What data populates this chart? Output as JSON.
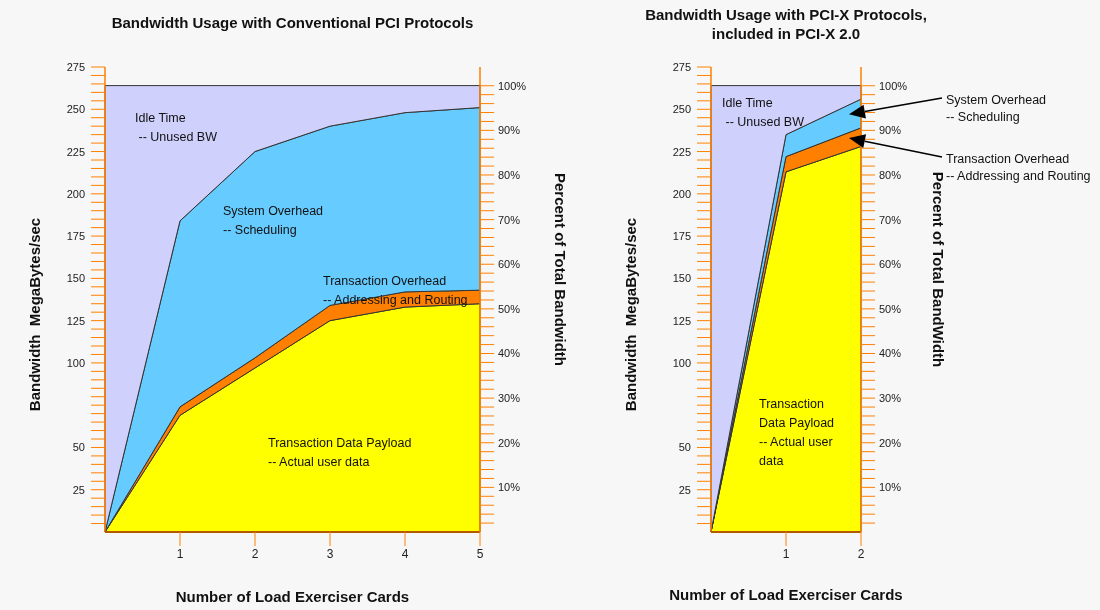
{
  "chart_data": [
    {
      "type": "area",
      "stacked": true,
      "title": "Bandwidth Usage with Conventional PCI Protocols",
      "xlabel": "Number of Load Exerciser Cards",
      "ylabel": "Bandwidth  MegaBytes/sec",
      "y2label": "Percent of Total Bandwidth",
      "x": [
        0,
        1,
        2,
        3,
        4,
        5
      ],
      "xlim": [
        0,
        5
      ],
      "xticks": [
        1,
        2,
        3,
        4,
        5
      ],
      "ylim": [
        0,
        275
      ],
      "yticks": [
        {
          "value": 5,
          "label": null
        },
        {
          "value": 10,
          "label": null
        },
        {
          "value": 15,
          "label": null
        },
        {
          "value": 20,
          "label": null
        },
        25,
        {
          "value": 30,
          "label": null
        },
        {
          "value": 35,
          "label": null
        },
        {
          "value": 40,
          "label": null
        },
        {
          "value": 45,
          "label": null
        },
        50,
        {
          "value": 55,
          "label": null
        },
        {
          "value": 60,
          "label": null
        },
        {
          "value": 65,
          "label": null
        },
        {
          "value": 70,
          "label": null
        },
        {
          "value": 75,
          "label": null
        },
        {
          "value": 80,
          "label": null
        },
        {
          "value": 85,
          "label": null
        },
        {
          "value": 90,
          "label": null
        },
        {
          "value": 95,
          "label": null
        },
        100,
        {
          "value": 105,
          "label": null
        },
        {
          "value": 110,
          "label": null
        },
        {
          "value": 115,
          "label": null
        },
        {
          "value": 120,
          "label": null
        },
        125,
        {
          "value": 130,
          "label": null
        },
        {
          "value": 135,
          "label": null
        },
        {
          "value": 140,
          "label": null
        },
        {
          "value": 145,
          "label": null
        },
        150,
        {
          "value": 155,
          "label": null
        },
        {
          "value": 160,
          "label": null
        },
        {
          "value": 165,
          "label": null
        },
        {
          "value": 170,
          "label": null
        },
        175,
        {
          "value": 180,
          "label": null
        },
        {
          "value": 185,
          "label": null
        },
        {
          "value": 190,
          "label": null
        },
        {
          "value": 195,
          "label": null
        },
        200,
        {
          "value": 205,
          "label": null
        },
        {
          "value": 210,
          "label": null
        },
        {
          "value": 215,
          "label": null
        },
        {
          "value": 220,
          "label": null
        },
        225,
        {
          "value": 230,
          "label": null
        },
        {
          "value": 235,
          "label": null
        },
        {
          "value": 240,
          "label": null
        },
        {
          "value": 245,
          "label": null
        },
        250,
        {
          "value": 255,
          "label": null
        },
        {
          "value": 260,
          "label": null
        },
        {
          "value": 265,
          "label": null
        },
        {
          "value": 270,
          "label": null
        },
        275
      ],
      "y2lim": [
        0,
        104.2
      ],
      "y2ticks": [
        {
          "value": 2,
          "label": null
        },
        {
          "value": 4,
          "label": null
        },
        {
          "value": 6,
          "label": null
        },
        {
          "value": 8,
          "label": null
        },
        {
          "value": 10,
          "label": "10%"
        },
        {
          "value": 12,
          "label": null
        },
        {
          "value": 14,
          "label": null
        },
        {
          "value": 16,
          "label": null
        },
        {
          "value": 18,
          "label": null
        },
        {
          "value": 20,
          "label": "20%"
        },
        {
          "value": 22,
          "label": null
        },
        {
          "value": 24,
          "label": null
        },
        {
          "value": 26,
          "label": null
        },
        {
          "value": 28,
          "label": null
        },
        {
          "value": 30,
          "label": "30%"
        },
        {
          "value": 32,
          "label": null
        },
        {
          "value": 34,
          "label": null
        },
        {
          "value": 36,
          "label": null
        },
        {
          "value": 38,
          "label": null
        },
        {
          "value": 40,
          "label": "40%"
        },
        {
          "value": 42,
          "label": null
        },
        {
          "value": 44,
          "label": null
        },
        {
          "value": 46,
          "label": null
        },
        {
          "value": 48,
          "label": null
        },
        {
          "value": 50,
          "label": "50%"
        },
        {
          "value": 52,
          "label": null
        },
        {
          "value": 54,
          "label": null
        },
        {
          "value": 56,
          "label": null
        },
        {
          "value": 58,
          "label": null
        },
        {
          "value": 60,
          "label": "60%"
        },
        {
          "value": 62,
          "label": null
        },
        {
          "value": 64,
          "label": null
        },
        {
          "value": 66,
          "label": null
        },
        {
          "value": 68,
          "label": null
        },
        {
          "value": 70,
          "label": "70%"
        },
        {
          "value": 72,
          "label": null
        },
        {
          "value": 74,
          "label": null
        },
        {
          "value": 76,
          "label": null
        },
        {
          "value": 78,
          "label": null
        },
        {
          "value": 80,
          "label": "80%"
        },
        {
          "value": 82,
          "label": null
        },
        {
          "value": 84,
          "label": null
        },
        {
          "value": 86,
          "label": null
        },
        {
          "value": 88,
          "label": null
        },
        {
          "value": 90,
          "label": "90%"
        },
        {
          "value": 92,
          "label": null
        },
        {
          "value": 94,
          "label": null
        },
        {
          "value": 96,
          "label": null
        },
        {
          "value": 98,
          "label": null
        },
        {
          "value": 100,
          "label": "100%"
        }
      ],
      "series": [
        {
          "name": "Transaction Data Payload\n-- Actual user data",
          "color": "#ffff00",
          "values": [
            0,
            69,
            97,
            125,
            133,
            135
          ]
        },
        {
          "name": "Transaction Overhead\n-- Addressing and Routing",
          "color": "#ff8000",
          "values": [
            0,
            5,
            6,
            9,
            9,
            8
          ]
        },
        {
          "name": "System Overhead\n-- Scheduling",
          "color": "#66ccff",
          "values": [
            0,
            110,
            122,
            106,
            106,
            108
          ]
        },
        {
          "name": "Idle Time\n -- Unused BW",
          "color": "#d0d0fc",
          "values": [
            264,
            80,
            39,
            24,
            16,
            13
          ]
        }
      ]
    },
    {
      "type": "area",
      "stacked": true,
      "title": "Bandwidth Usage with PCI-X Protocols,\nincluded in PCI-X 2.0",
      "xlabel": "Number of Load Exerciser Cards",
      "ylabel": "Bandwidth  MegaBytes/sec",
      "y2label": "Percent of Total BandWidth",
      "x": [
        0,
        1,
        2
      ],
      "xlim": [
        0,
        2
      ],
      "xticks": [
        1,
        2
      ],
      "ylim": [
        0,
        275
      ],
      "yticks": [
        {
          "value": 5,
          "label": null
        },
        {
          "value": 10,
          "label": null
        },
        {
          "value": 15,
          "label": null
        },
        {
          "value": 20,
          "label": null
        },
        25,
        {
          "value": 30,
          "label": null
        },
        {
          "value": 35,
          "label": null
        },
        {
          "value": 40,
          "label": null
        },
        {
          "value": 45,
          "label": null
        },
        50,
        {
          "value": 55,
          "label": null
        },
        {
          "value": 60,
          "label": null
        },
        {
          "value": 65,
          "label": null
        },
        {
          "value": 70,
          "label": null
        },
        {
          "value": 75,
          "label": null
        },
        {
          "value": 80,
          "label": null
        },
        {
          "value": 85,
          "label": null
        },
        {
          "value": 90,
          "label": null
        },
        {
          "value": 95,
          "label": null
        },
        100,
        {
          "value": 105,
          "label": null
        },
        {
          "value": 110,
          "label": null
        },
        {
          "value": 115,
          "label": null
        },
        {
          "value": 120,
          "label": null
        },
        125,
        {
          "value": 130,
          "label": null
        },
        {
          "value": 135,
          "label": null
        },
        {
          "value": 140,
          "label": null
        },
        {
          "value": 145,
          "label": null
        },
        150,
        {
          "value": 155,
          "label": null
        },
        {
          "value": 160,
          "label": null
        },
        {
          "value": 165,
          "label": null
        },
        {
          "value": 170,
          "label": null
        },
        175,
        {
          "value": 180,
          "label": null
        },
        {
          "value": 185,
          "label": null
        },
        {
          "value": 190,
          "label": null
        },
        {
          "value": 195,
          "label": null
        },
        200,
        {
          "value": 205,
          "label": null
        },
        {
          "value": 210,
          "label": null
        },
        {
          "value": 215,
          "label": null
        },
        {
          "value": 220,
          "label": null
        },
        225,
        {
          "value": 230,
          "label": null
        },
        {
          "value": 235,
          "label": null
        },
        {
          "value": 240,
          "label": null
        },
        {
          "value": 245,
          "label": null
        },
        250,
        {
          "value": 255,
          "label": null
        },
        {
          "value": 260,
          "label": null
        },
        {
          "value": 265,
          "label": null
        },
        {
          "value": 270,
          "label": null
        },
        275
      ],
      "y2lim": [
        0,
        104.2
      ],
      "y2ticks": [
        {
          "value": 2,
          "label": null
        },
        {
          "value": 4,
          "label": null
        },
        {
          "value": 6,
          "label": null
        },
        {
          "value": 8,
          "label": null
        },
        {
          "value": 10,
          "label": "10%"
        },
        {
          "value": 12,
          "label": null
        },
        {
          "value": 14,
          "label": null
        },
        {
          "value": 16,
          "label": null
        },
        {
          "value": 18,
          "label": null
        },
        {
          "value": 20,
          "label": "20%"
        },
        {
          "value": 22,
          "label": null
        },
        {
          "value": 24,
          "label": null
        },
        {
          "value": 26,
          "label": null
        },
        {
          "value": 28,
          "label": null
        },
        {
          "value": 30,
          "label": "30%"
        },
        {
          "value": 32,
          "label": null
        },
        {
          "value": 34,
          "label": null
        },
        {
          "value": 36,
          "label": null
        },
        {
          "value": 38,
          "label": null
        },
        {
          "value": 40,
          "label": "40%"
        },
        {
          "value": 42,
          "label": null
        },
        {
          "value": 44,
          "label": null
        },
        {
          "value": 46,
          "label": null
        },
        {
          "value": 48,
          "label": null
        },
        {
          "value": 50,
          "label": "50%"
        },
        {
          "value": 52,
          "label": null
        },
        {
          "value": 54,
          "label": null
        },
        {
          "value": 56,
          "label": null
        },
        {
          "value": 58,
          "label": null
        },
        {
          "value": 60,
          "label": "60%"
        },
        {
          "value": 62,
          "label": null
        },
        {
          "value": 64,
          "label": null
        },
        {
          "value": 66,
          "label": null
        },
        {
          "value": 68,
          "label": null
        },
        {
          "value": 70,
          "label": "70%"
        },
        {
          "value": 72,
          "label": null
        },
        {
          "value": 74,
          "label": null
        },
        {
          "value": 76,
          "label": null
        },
        {
          "value": 78,
          "label": null
        },
        {
          "value": 80,
          "label": "80%"
        },
        {
          "value": 82,
          "label": null
        },
        {
          "value": 84,
          "label": null
        },
        {
          "value": 86,
          "label": null
        },
        {
          "value": 88,
          "label": null
        },
        {
          "value": 90,
          "label": "90%"
        },
        {
          "value": 92,
          "label": null
        },
        {
          "value": 94,
          "label": null
        },
        {
          "value": 96,
          "label": null
        },
        {
          "value": 98,
          "label": null
        },
        {
          "value": 100,
          "label": "100%"
        }
      ],
      "annotations": [
        {
          "text": "System Overhead\n-- Scheduling",
          "x": 2,
          "y": 247
        },
        {
          "text": "Transaction Overhead\n-- Addressing and Routing",
          "x": 2,
          "y": 233
        }
      ],
      "series": [
        {
          "name": "Transaction\nData Payload\n-- Actual user\ndata",
          "color": "#ffff00",
          "values": [
            0,
            213,
            228
          ]
        },
        {
          "color": "#ff8000",
          "values": [
            0,
            9,
            11
          ]
        },
        {
          "color": "#66ccff",
          "values": [
            0,
            13,
            17
          ]
        },
        {
          "name": "Idle Time\n -- Unused BW",
          "color": "#d0d0fc",
          "values": [
            264,
            29,
            8
          ]
        }
      ]
    }
  ]
}
